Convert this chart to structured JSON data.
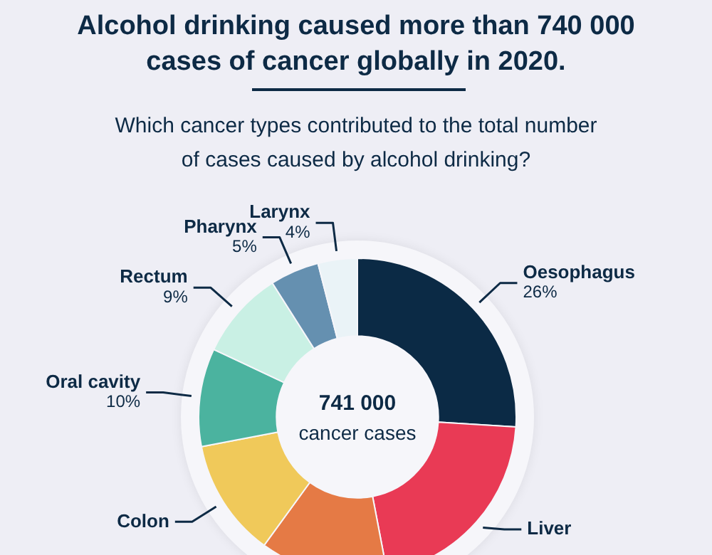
{
  "chart_data": {
    "type": "donut",
    "title": "Alcohol drinking caused more than 740 000 cases of cancer globally in 2020.",
    "subtitle": "Which cancer types contributed to the total number of cases caused by alcohol drinking?",
    "categories": [
      "Oesophagus",
      "Liver",
      null,
      "Colon",
      "Oral cavity",
      "Rectum",
      "Pharynx",
      "Larynx"
    ],
    "values": [
      26,
      21,
      13,
      12,
      10,
      9,
      5,
      4
    ],
    "value_labels": [
      "26%",
      null,
      null,
      null,
      "10%",
      "9%",
      "5%",
      "4%"
    ],
    "colors": [
      "#0b2a45",
      "#e93a55",
      "#e57a45",
      "#f0c95a",
      "#4bb39f",
      "#c9f0e4",
      "#6590b0",
      "#eaf3f7"
    ],
    "annotations": [
      "741 000",
      "cancer cases"
    ],
    "legend": false
  }
}
